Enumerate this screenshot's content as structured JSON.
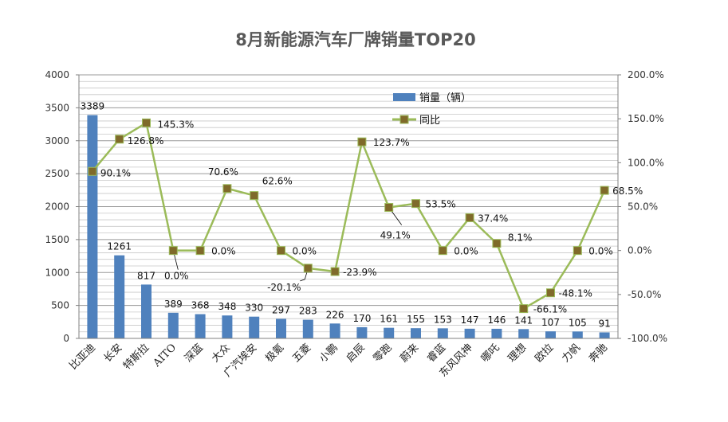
{
  "chart_data": {
    "type": "bar",
    "title": "8月新能源汽车厂牌销量TOP20",
    "categories": [
      "比亚迪",
      "长安",
      "特斯拉",
      "AITO",
      "深蓝",
      "大众",
      "广汽埃安",
      "极氪",
      "五菱",
      "小鹏",
      "启辰",
      "零跑",
      "蔚来",
      "睿蓝",
      "东风风神",
      "哪吒",
      "理想",
      "欧拉",
      "力帆",
      "奔驰"
    ],
    "series": [
      {
        "name": "销量（辆）",
        "type": "bar",
        "axis": "left",
        "color": "#4f81bd",
        "values": [
          3389,
          1261,
          817,
          389,
          368,
          348,
          330,
          297,
          283,
          226,
          170,
          161,
          155,
          153,
          147,
          146,
          141,
          107,
          105,
          91
        ],
        "labels": [
          "3389",
          "1261",
          "817",
          "389",
          "368",
          "348",
          "330",
          "297",
          "283",
          "226",
          "170",
          "161",
          "155",
          "153",
          "147",
          "146",
          "141",
          "107",
          "105",
          "91"
        ]
      },
      {
        "name": "同比",
        "type": "line",
        "axis": "right",
        "color": "#9bbb59",
        "marker_color": "#7f6a2a",
        "values": [
          90.1,
          126.8,
          145.3,
          0.0,
          0.0,
          70.6,
          62.6,
          0.0,
          -20.1,
          -23.9,
          123.7,
          49.1,
          53.5,
          0.0,
          37.4,
          8.1,
          -66.1,
          -48.1,
          0.0,
          68.5
        ],
        "labels": [
          "90.1%",
          "126.8%",
          "145.3%",
          "0.0%",
          "0.0%",
          "70.6%",
          "62.6%",
          "0.0%",
          "-20.1%",
          "-23.9%",
          "123.7%",
          "49.1%",
          "53.5%",
          "0.0%",
          "37.4%",
          "8.1%",
          "-66.1%",
          "-48.1%",
          "0.0%",
          "68.5%"
        ]
      }
    ],
    "y_left": {
      "min": 0,
      "max": 4000,
      "step": 500,
      "ticks": [
        "0",
        "500",
        "1000",
        "1500",
        "2000",
        "2500",
        "3000",
        "3500",
        "4000"
      ]
    },
    "y_right": {
      "min": -100,
      "max": 200,
      "step": 50,
      "ticks": [
        "-100.0%",
        "-50.0%",
        "0.0%",
        "50.0%",
        "100.0%",
        "150.0%",
        "200.0%"
      ]
    },
    "grid": true,
    "legend": "top-center"
  }
}
